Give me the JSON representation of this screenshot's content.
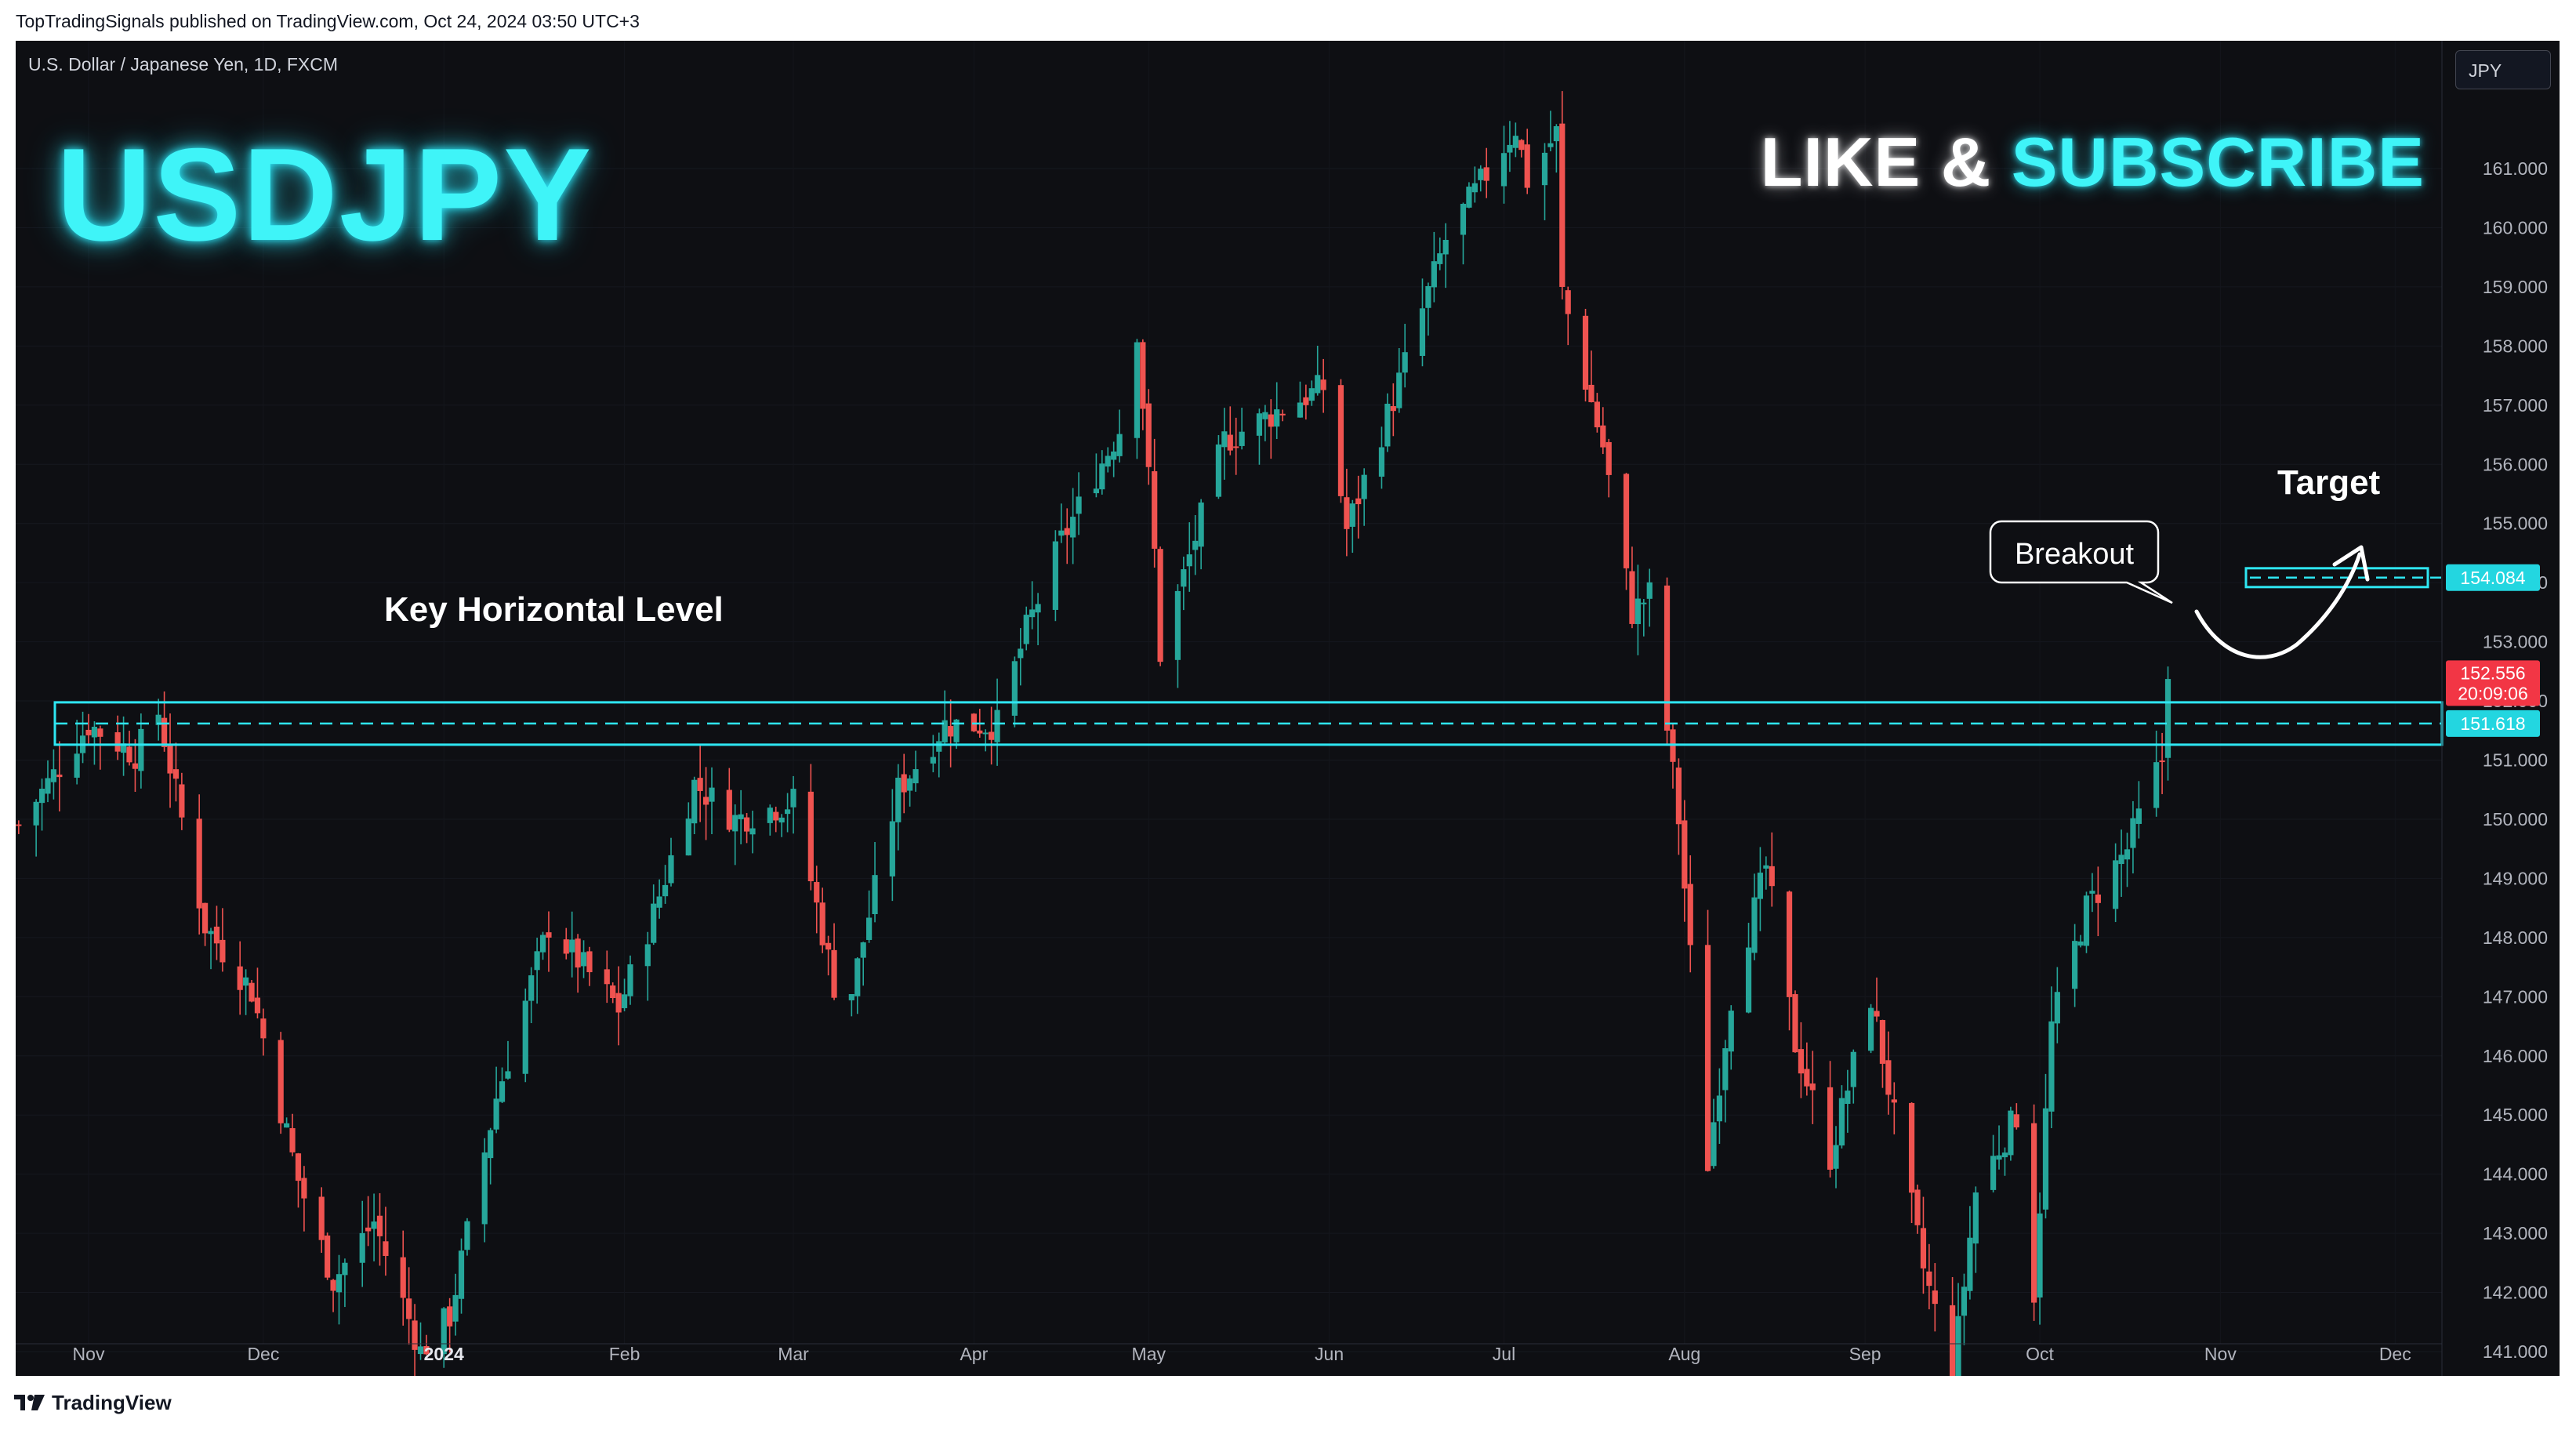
{
  "header": {
    "published": "TopTradingSignals published on TradingView.com, Oct 24, 2024 03:50 UTC+3"
  },
  "symbol_line": "U.S. Dollar / Japanese Yen, 1D, FXCM",
  "overlay": {
    "big_title": "USDJPY",
    "like": "LIKE & ",
    "subscribe": "SUBSCRIBE",
    "key_level_label": "Key Horizontal Level",
    "breakout_label": "Breakout",
    "target_label": "Target"
  },
  "currency_tag": "JPY",
  "price_tags": {
    "target": "154.084",
    "key": "151.618",
    "last_price": "152.556",
    "countdown": "20:09:06"
  },
  "footer": {
    "brand": "TradingView"
  },
  "colors": {
    "up": "#26a69a",
    "down": "#ef5350",
    "accent": "#2ee6f2",
    "background": "#0e0f13"
  },
  "chart_data": {
    "type": "candlestick",
    "title": "U.S. Dollar / Japanese Yen, 1D, FXCM",
    "y_axis": {
      "ticks": [
        "161.000",
        "160.000",
        "159.000",
        "158.000",
        "157.000",
        "156.000",
        "155.000",
        "154.000",
        "153.000",
        "152.000",
        "151.000",
        "150.000",
        "149.000",
        "148.000",
        "147.000",
        "146.000",
        "145.000",
        "144.000",
        "143.000",
        "142.000",
        "141.000"
      ],
      "range": [
        140.2,
        162.0
      ]
    },
    "x_axis": {
      "ticks": [
        "Nov",
        "Dec",
        "2024",
        "Feb",
        "Mar",
        "Apr",
        "May",
        "Jun",
        "Jul",
        "Aug",
        "Sep",
        "Oct",
        "Nov",
        "Dec"
      ],
      "bold": [
        "2024"
      ]
    },
    "path": [
      [
        "2023-10-20",
        149.9
      ],
      [
        "2023-11-01",
        151.6
      ],
      [
        "2023-11-09",
        151.1
      ],
      [
        "2023-11-13",
        151.8
      ],
      [
        "2023-11-21",
        148.2
      ],
      [
        "2023-11-29",
        147.1
      ],
      [
        "2023-12-07",
        143.9
      ],
      [
        "2023-12-13",
        142.2
      ],
      [
        "2023-12-20",
        143.2
      ],
      [
        "2023-12-28",
        141.0
      ],
      [
        "2024-01-02",
        141.6
      ],
      [
        "2024-01-10",
        145.3
      ],
      [
        "2024-01-19",
        148.2
      ],
      [
        "2024-01-31",
        146.8
      ],
      [
        "2024-02-06",
        148.4
      ],
      [
        "2024-02-13",
        150.6
      ],
      [
        "2024-02-20",
        150.0
      ],
      [
        "2024-03-01",
        150.3
      ],
      [
        "2024-03-08",
        147.2
      ],
      [
        "2024-03-11",
        147.1
      ],
      [
        "2024-03-19",
        150.5
      ],
      [
        "2024-03-27",
        151.6
      ],
      [
        "2024-04-05",
        151.6
      ],
      [
        "2024-04-10",
        153.2
      ],
      [
        "2024-04-16",
        154.7
      ],
      [
        "2024-04-26",
        156.6
      ],
      [
        "2024-04-29",
        158.3
      ],
      [
        "2024-05-02",
        154.5
      ],
      [
        "2024-05-03",
        152.8
      ],
      [
        "2024-05-14",
        156.4
      ],
      [
        "2024-05-23",
        156.9
      ],
      [
        "2024-05-31",
        157.3
      ],
      [
        "2024-06-04",
        154.9
      ],
      [
        "2024-06-12",
        157.1
      ],
      [
        "2024-06-21",
        159.8
      ],
      [
        "2024-07-03",
        161.7
      ],
      [
        "2024-07-05",
        160.8
      ],
      [
        "2024-07-10",
        161.6
      ],
      [
        "2024-07-11",
        158.9
      ],
      [
        "2024-07-18",
        156.3
      ],
      [
        "2024-07-23",
        153.5
      ],
      [
        "2024-07-26",
        153.8
      ],
      [
        "2024-07-31",
        150.0
      ],
      [
        "2024-08-05",
        144.2
      ],
      [
        "2024-08-09",
        147.0
      ],
      [
        "2024-08-15",
        149.2
      ],
      [
        "2024-08-20",
        146.2
      ],
      [
        "2024-08-26",
        144.3
      ],
      [
        "2024-09-02",
        147.0
      ],
      [
        "2024-09-11",
        142.4
      ],
      [
        "2024-09-16",
        140.6
      ],
      [
        "2024-09-20",
        143.7
      ],
      [
        "2024-09-27",
        145.0
      ],
      [
        "2024-09-30",
        142.0
      ],
      [
        "2024-10-03",
        146.5
      ],
      [
        "2024-10-09",
        148.5
      ],
      [
        "2024-10-16",
        149.5
      ],
      [
        "2024-10-21",
        150.8
      ],
      [
        "2024-10-22",
        151.0
      ],
      [
        "2024-10-23",
        152.6
      ]
    ],
    "levels": [
      {
        "price": 151.618,
        "label": "Key Horizontal Level"
      },
      {
        "price": 154.084,
        "label": "Target"
      }
    ]
  }
}
